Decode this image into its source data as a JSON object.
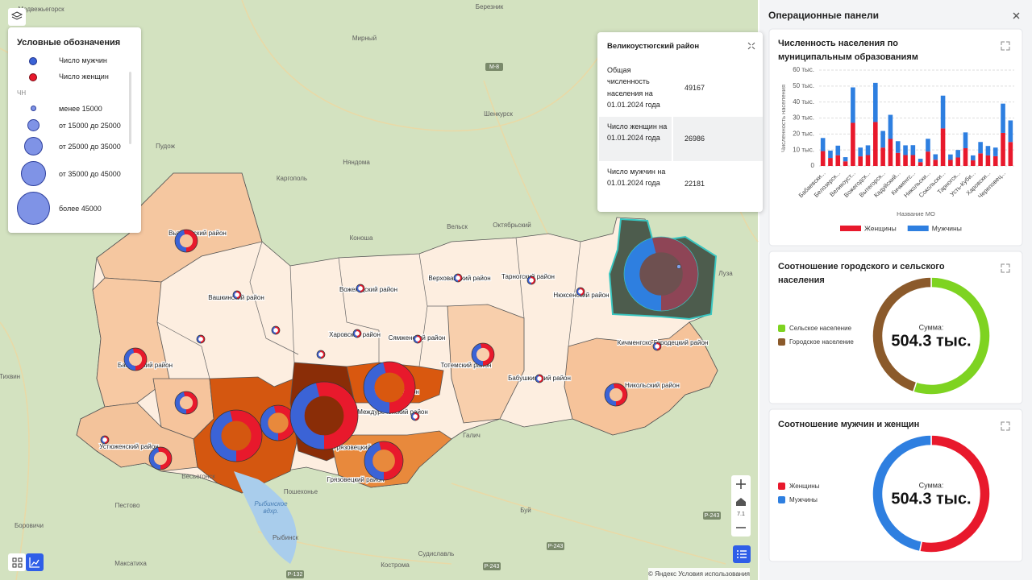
{
  "map": {
    "places": [
      "Медвежьегорск",
      "Мирный",
      "Березник",
      "М-8",
      "Шенкурск",
      "Пудож",
      "Каргополь",
      "Няндома",
      "Октябрьский",
      "Вельск",
      "Коноша",
      "Луза",
      "Тихвин",
      "Пестово",
      "Боровичи",
      "Весьегонск",
      "Пошехонье",
      "Рыбинское",
      "вдхр.",
      "Рыбинск",
      "Максатиха",
      "Судиславль",
      "Кострома",
      "Р-132",
      "Р-243",
      "Р-243",
      "Р-243",
      "Галич",
      "Буй"
    ],
    "districts": [
      "Вытегорский район",
      "Вашкинский район",
      "Вожегодский район",
      "Верховажский район",
      "Тарногский район",
      "Нюксенский район",
      "Харовский район",
      "Сямженский район",
      "Кичменгско-Городецкий район",
      "Тотемский район",
      "Бабушкинский район",
      "Никольский район",
      "Бабаевский район",
      "Сокольский район",
      "Устюженский район",
      "Грязовецкий район",
      "Грязовецкий",
      "Междуреченский район"
    ],
    "zoom": "7.1",
    "attribution": "© Яндекс Условия использования"
  },
  "legend": {
    "title": "Условные обозначения",
    "items": [
      "Число мужчин",
      "Число женщин"
    ],
    "size_title": "ЧН",
    "sizes": [
      "менее 15000",
      "от 15000 до 25000",
      "от 25000 до 35000",
      "от 35000 до 45000",
      "более 45000"
    ]
  },
  "popup": {
    "title": "Великоустюгский район",
    "rows": [
      [
        "Общая численность населения на 01.01.2024 года",
        49167
      ],
      [
        "Число женщин на 01.01.2024 года",
        26986
      ],
      [
        "Число мужчин на 01.01.2024 года",
        22181
      ]
    ]
  },
  "panel": {
    "title": "Операционные панели"
  },
  "chart_data": [
    {
      "type": "bar",
      "title": "Численность населения по муниципальным образованиям",
      "stacked": true,
      "x_label": "Название МО",
      "y_label": "Численность населения",
      "categories": [
        "Бабаевски...",
        null,
        "Белозерск...",
        null,
        "Великоуст...",
        null,
        "Вожегодск...",
        null,
        "Вытегорск...",
        null,
        "Кадуйский...",
        null,
        "Кичменгс...",
        null,
        "Никольски...",
        null,
        "Сокольски...",
        null,
        "Тарногск...",
        null,
        "Усть-Куби...",
        null,
        "Харовски...",
        null,
        "Череповец...",
        null
      ],
      "series": [
        {
          "name": "Женщины",
          "color": "#e8192c",
          "values": [
            9300,
            5000,
            6700,
            2900,
            26986,
            6000,
            6800,
            27500,
            11500,
            16900,
            8200,
            6800,
            6800,
            2400,
            9000,
            3900,
            23500,
            3800,
            5300,
            11100,
            3500,
            7900,
            6600,
            6100,
            20700,
            15000
          ]
        },
        {
          "name": "Мужчины",
          "color": "#2e7fe0",
          "values": [
            8200,
            4600,
            6000,
            2600,
            22181,
            5500,
            6100,
            24500,
            10400,
            15100,
            7300,
            6100,
            6200,
            2100,
            8000,
            3400,
            20500,
            3400,
            4700,
            9900,
            3100,
            7100,
            5900,
            5400,
            18300,
            13500
          ]
        }
      ],
      "ylim": [
        0,
        60000
      ],
      "yticks": [
        0,
        {
          "value": 10000,
          "label": "10 тыс."
        },
        {
          "value": 20000,
          "label": "20 тыс."
        },
        {
          "value": 30000,
          "label": "30 тыс."
        },
        {
          "value": 40000,
          "label": "40 тыс."
        },
        {
          "value": 50000,
          "label": "50 тыс."
        },
        {
          "value": 60000,
          "label": "60 тыс."
        }
      ],
      "grid": true
    },
    {
      "type": "donut",
      "title": "Соотношение городского и сельского населения",
      "categories": [
        "Сельское население",
        "Городское население"
      ],
      "values": [
        277000,
        227300
      ],
      "colors": [
        "#7ed321",
        "#8b5a2b"
      ],
      "center_title": "Сумма:",
      "center_value": "504.3 тыс."
    },
    {
      "type": "donut",
      "title": "Соотношение мужчин и женщин",
      "categories": [
        "Женщины",
        "Мужчины"
      ],
      "values": [
        268000,
        236300
      ],
      "colors": [
        "#e8192c",
        "#2e7fe0"
      ],
      "center_title": "Сумма:",
      "center_value": "504.3 тыс."
    }
  ]
}
